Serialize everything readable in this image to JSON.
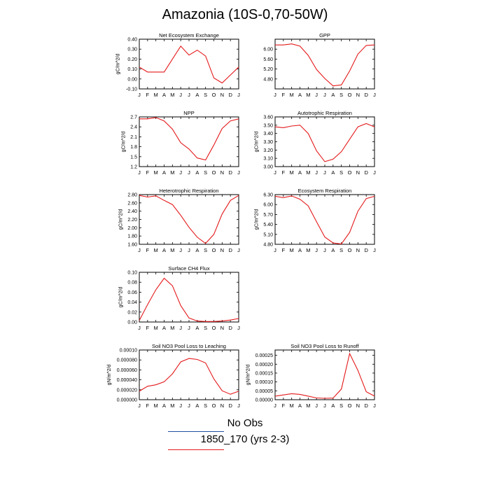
{
  "page": {
    "title": "Amazonia (10S-0,70-50W)"
  },
  "months": [
    "J",
    "F",
    "M",
    "A",
    "M",
    "J",
    "J",
    "A",
    "S",
    "O",
    "N",
    "D",
    "J"
  ],
  "line_color": "#e41a1c",
  "legend": {
    "items": [
      {
        "label": "No Obs",
        "color": "#1f4fa0"
      },
      {
        "label": "1850_170 (yrs 2-3)",
        "color": "#e41a1c"
      }
    ]
  },
  "chart_data": [
    {
      "type": "line",
      "title": "Net Ecosystem Exchange",
      "ylabel": "gC/m^2/d",
      "ylim": [
        -0.1,
        0.4
      ],
      "yticks": [
        "-0.10",
        "0.00",
        "0.10",
        "0.20",
        "0.30",
        "0.40"
      ],
      "ytick_values": [
        -0.1,
        0.0,
        0.1,
        0.2,
        0.3,
        0.4
      ],
      "x": [
        "J",
        "F",
        "M",
        "A",
        "M",
        "J",
        "J",
        "A",
        "S",
        "O",
        "N",
        "D",
        "J"
      ],
      "values": [
        0.12,
        0.07,
        0.07,
        0.07,
        0.2,
        0.33,
        0.24,
        0.29,
        0.23,
        0.01,
        -0.04,
        0.04,
        0.12
      ]
    },
    {
      "type": "line",
      "title": "GPP",
      "ylabel": "",
      "ylim": [
        4.4,
        6.4
      ],
      "yticks": [
        "4.80",
        "5.20",
        "5.60",
        "6.00"
      ],
      "ytick_values": [
        4.8,
        5.2,
        5.6,
        6.0
      ],
      "x": [
        "J",
        "F",
        "M",
        "A",
        "M",
        "J",
        "J",
        "A",
        "S",
        "O",
        "N",
        "D",
        "J"
      ],
      "values": [
        6.17,
        6.17,
        6.21,
        6.12,
        5.75,
        5.18,
        4.82,
        4.52,
        4.56,
        5.12,
        5.8,
        6.15,
        6.17
      ]
    },
    {
      "type": "line",
      "title": "NPP",
      "ylabel": "gC/m^2/d",
      "ylim": [
        1.2,
        2.7
      ],
      "yticks": [
        "1.2",
        "1.5",
        "1.8",
        "2.1",
        "2.4",
        "2.7"
      ],
      "ytick_values": [
        1.2,
        1.5,
        1.8,
        2.1,
        2.4,
        2.7
      ],
      "x": [
        "J",
        "F",
        "M",
        "A",
        "M",
        "J",
        "J",
        "A",
        "S",
        "O",
        "N",
        "D",
        "J"
      ],
      "values": [
        2.64,
        2.64,
        2.68,
        2.58,
        2.33,
        1.92,
        1.73,
        1.46,
        1.4,
        1.85,
        2.35,
        2.58,
        2.64
      ]
    },
    {
      "type": "line",
      "title": "Autotrophic Respiration",
      "ylabel": "gC/m^2/d",
      "ylim": [
        3.0,
        3.6
      ],
      "yticks": [
        "3.00",
        "3.10",
        "3.20",
        "3.30",
        "3.40",
        "3.50",
        "3.60"
      ],
      "ytick_values": [
        3.0,
        3.1,
        3.2,
        3.3,
        3.4,
        3.5,
        3.6
      ],
      "x": [
        "J",
        "F",
        "M",
        "A",
        "M",
        "J",
        "J",
        "A",
        "S",
        "O",
        "N",
        "D",
        "J"
      ],
      "values": [
        3.48,
        3.47,
        3.49,
        3.5,
        3.4,
        3.19,
        3.06,
        3.09,
        3.18,
        3.33,
        3.48,
        3.52,
        3.48
      ]
    },
    {
      "type": "line",
      "title": "Heterotrophic Respiration",
      "ylabel": "gC/m^2/d",
      "ylim": [
        1.6,
        2.8
      ],
      "yticks": [
        "1.60",
        "1.80",
        "2.00",
        "2.20",
        "2.40",
        "2.60",
        "2.80"
      ],
      "ytick_values": [
        1.6,
        1.8,
        2.0,
        2.2,
        2.4,
        2.6,
        2.8
      ],
      "x": [
        "J",
        "F",
        "M",
        "A",
        "M",
        "J",
        "J",
        "A",
        "S",
        "O",
        "N",
        "D",
        "J"
      ],
      "values": [
        2.78,
        2.74,
        2.77,
        2.66,
        2.56,
        2.3,
        2.01,
        1.77,
        1.62,
        1.84,
        2.33,
        2.66,
        2.78
      ]
    },
    {
      "type": "line",
      "title": "Ecosystem Respiration",
      "ylabel": "gC/m^2/d",
      "ylim": [
        4.8,
        6.3
      ],
      "yticks": [
        "4.80",
        "5.10",
        "5.40",
        "5.70",
        "6.00",
        "6.30"
      ],
      "ytick_values": [
        4.8,
        5.1,
        5.4,
        5.7,
        6.0,
        6.3
      ],
      "x": [
        "J",
        "F",
        "M",
        "A",
        "M",
        "J",
        "J",
        "A",
        "S",
        "O",
        "N",
        "D",
        "J"
      ],
      "values": [
        6.25,
        6.21,
        6.26,
        6.16,
        5.96,
        5.48,
        5.02,
        4.84,
        4.81,
        5.16,
        5.8,
        6.18,
        6.25
      ]
    },
    {
      "type": "line",
      "title": "Surface CH4 Flux",
      "ylabel": "gC/m^2/d",
      "ylim": [
        0.0,
        0.1
      ],
      "yticks": [
        "0.00",
        "0.02",
        "0.04",
        "0.06",
        "0.08",
        "0.10"
      ],
      "ytick_values": [
        0.0,
        0.02,
        0.04,
        0.06,
        0.08,
        0.1
      ],
      "x": [
        "J",
        "F",
        "M",
        "A",
        "M",
        "J",
        "J",
        "A",
        "S",
        "O",
        "N",
        "D",
        "J"
      ],
      "values": [
        0.003,
        0.035,
        0.065,
        0.088,
        0.073,
        0.033,
        0.008,
        0.002,
        0.001,
        0.001,
        0.002,
        0.004,
        0.007
      ]
    },
    {
      "type": "line",
      "title": "Soil NO3 Pool Loss to Leaching",
      "ylabel": "gN/m^2/d",
      "ylim": [
        0.0,
        0.0001
      ],
      "yticks": [
        "0.000000",
        "0.000020",
        "0.000040",
        "0.000060",
        "0.000080",
        "0.00010"
      ],
      "ytick_values": [
        0.0,
        2e-05,
        4e-05,
        6e-05,
        8e-05,
        0.0001
      ],
      "x": [
        "J",
        "F",
        "M",
        "A",
        "M",
        "J",
        "J",
        "A",
        "S",
        "O",
        "N",
        "D",
        "J"
      ],
      "values": [
        1.7e-05,
        2.7e-05,
        3e-05,
        3.6e-05,
        5.2e-05,
        7.6e-05,
        8.3e-05,
        8.1e-05,
        7.4e-05,
        4.2e-05,
        1.8e-05,
        1.1e-05,
        1.7e-05
      ]
    },
    {
      "type": "line",
      "title": "Soil NO3 Pool Loss to Runoff",
      "ylabel": "gN/m^2/d",
      "ylim": [
        0.0,
        0.00028
      ],
      "yticks": [
        "0.00000",
        "0.00005",
        "0.00010",
        "0.00015",
        "0.00020",
        "0.00025"
      ],
      "ytick_values": [
        0.0,
        5e-05,
        0.0001,
        0.00015,
        0.0002,
        0.00025
      ],
      "x": [
        "J",
        "F",
        "M",
        "A",
        "M",
        "J",
        "J",
        "A",
        "S",
        "O",
        "N",
        "D",
        "J"
      ],
      "values": [
        2e-05,
        2.7e-05,
        3.4e-05,
        3e-05,
        2e-05,
        1e-05,
        8e-06,
        9e-06,
        6e-05,
        0.00026,
        0.000165,
        4.5e-05,
        2e-05
      ]
    }
  ]
}
